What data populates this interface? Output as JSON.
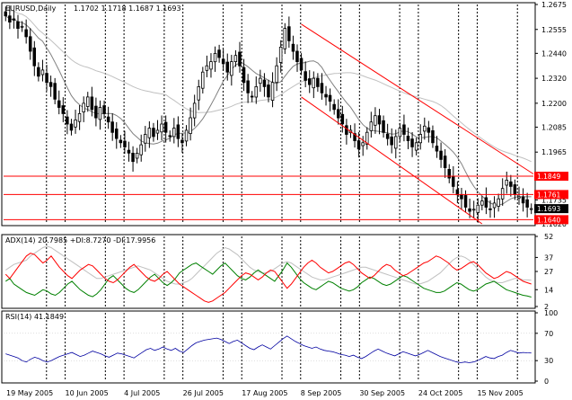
{
  "chart_data": [
    {
      "type": "candlestick",
      "title": "EURUSD,Daily",
      "ohlc_header": "1.1702 1.1718 1.1687 1.1693",
      "ylim": [
        1.162,
        1.2675
      ],
      "y_ticks": [
        1.2675,
        1.2555,
        1.244,
        1.232,
        1.22,
        1.2085,
        1.1965,
        1.185,
        1.1735,
        1.162
      ],
      "x_tick_labels": [
        "19 May 2005",
        "10 Jun 2005",
        "4 Jul 2005",
        "26 Jul 2005",
        "17 Aug 2005",
        "8 Sep 2005",
        "30 Sep 2005",
        "24 Oct 2005",
        "15 Nov 2005"
      ],
      "horizontal_levels": [
        1.1849,
        1.1761,
        1.164
      ],
      "level_labels": [
        "1.1849",
        "1.1761",
        "1.1640"
      ],
      "current_price": 1.1693,
      "current_price_label": "1.1693",
      "close_series": [
        1.262,
        1.259,
        1.26,
        1.256,
        1.257,
        1.252,
        1.245,
        1.238,
        1.233,
        1.236,
        1.23,
        1.228,
        1.222,
        1.218,
        1.215,
        1.21,
        1.207,
        1.212,
        1.215,
        1.22,
        1.223,
        1.217,
        1.213,
        1.218,
        1.215,
        1.211,
        1.206,
        1.203,
        1.201,
        1.199,
        1.196,
        1.192,
        1.196,
        1.2,
        1.205,
        1.208,
        1.204,
        1.207,
        1.21,
        1.206,
        1.204,
        1.208,
        1.203,
        1.201,
        1.207,
        1.213,
        1.22,
        1.228,
        1.235,
        1.238,
        1.24,
        1.244,
        1.242,
        1.239,
        1.235,
        1.24,
        1.243,
        1.238,
        1.23,
        1.225,
        1.223,
        1.228,
        1.232,
        1.228,
        1.223,
        1.23,
        1.238,
        1.247,
        1.256,
        1.25,
        1.245,
        1.24,
        1.236,
        1.231,
        1.229,
        1.232,
        1.228,
        1.225,
        1.223,
        1.221,
        1.217,
        1.213,
        1.21,
        1.205,
        1.207,
        1.202,
        1.198,
        1.201,
        1.206,
        1.211,
        1.214,
        1.21,
        1.206,
        1.203,
        1.2,
        1.204,
        1.208,
        1.205,
        1.202,
        1.199,
        1.201,
        1.205,
        1.209,
        1.206,
        1.201,
        1.197,
        1.193,
        1.189,
        1.184,
        1.18,
        1.176,
        1.174,
        1.17,
        1.168,
        1.169,
        1.171,
        1.173,
        1.17,
        1.169,
        1.172,
        1.174,
        1.179,
        1.183,
        1.18,
        1.176,
        1.175,
        1.172,
        1.17,
        1.1693
      ]
    },
    {
      "type": "line",
      "indicator_label": "ADX(14) 20.7985 +DI:8.7270 -DI:17.9956",
      "ylim": [
        2,
        52
      ],
      "y_ticks": [
        52,
        37,
        27,
        14,
        2
      ],
      "series": [
        {
          "name": "ADX(14)",
          "color": "#c0c0c0",
          "values": [
            28,
            30,
            32,
            33,
            34,
            35,
            38,
            40,
            42,
            44,
            45,
            44,
            42,
            40,
            38,
            36,
            34,
            32,
            30,
            28,
            26,
            24,
            22,
            22,
            23,
            24,
            25,
            26,
            27,
            28,
            29,
            30,
            31,
            30,
            29,
            28,
            26,
            24,
            22,
            20,
            19,
            18,
            18,
            19,
            20,
            22,
            25,
            28,
            31,
            34,
            37,
            40,
            42,
            44,
            43,
            41,
            39,
            36,
            33,
            30,
            28,
            27,
            26,
            26,
            27,
            29,
            31,
            33,
            34,
            33,
            31,
            29,
            27,
            25,
            23,
            22,
            21,
            21,
            22,
            23,
            24,
            25,
            26,
            27,
            28,
            29,
            30,
            30,
            29,
            28,
            27,
            26,
            25,
            24,
            23,
            22,
            21,
            20,
            19,
            18,
            18,
            19,
            20,
            22,
            24,
            26,
            29,
            32,
            35,
            37,
            38,
            37,
            35,
            32,
            29,
            26,
            23,
            21,
            20,
            19,
            19,
            20,
            21,
            22,
            22,
            21,
            21,
            20.8
          ]
        },
        {
          "name": "+DI",
          "color": "#008000",
          "values": [
            20,
            22,
            18,
            16,
            14,
            12,
            11,
            10,
            12,
            14,
            13,
            11,
            10,
            12,
            15,
            18,
            20,
            17,
            14,
            12,
            10,
            9,
            11,
            14,
            18,
            22,
            24,
            21,
            18,
            15,
            13,
            12,
            14,
            17,
            20,
            23,
            25,
            22,
            19,
            17,
            19,
            22,
            26,
            28,
            30,
            32,
            33,
            31,
            29,
            27,
            25,
            28,
            31,
            33,
            30,
            27,
            24,
            22,
            21,
            23,
            26,
            28,
            26,
            24,
            22,
            20,
            24,
            28,
            33,
            30,
            26,
            22,
            19,
            17,
            15,
            14,
            16,
            18,
            20,
            19,
            17,
            15,
            14,
            13,
            14,
            16,
            19,
            21,
            23,
            22,
            20,
            18,
            17,
            18,
            20,
            22,
            24,
            23,
            21,
            19,
            17,
            15,
            14,
            13,
            12,
            12,
            13,
            15,
            17,
            19,
            18,
            16,
            14,
            13,
            14,
            16,
            18,
            19,
            20,
            18,
            16,
            14,
            13,
            12,
            11,
            10,
            9.5,
            8.7
          ]
        },
        {
          "name": "-DI",
          "color": "#ff0000",
          "values": [
            25,
            22,
            26,
            30,
            34,
            38,
            40,
            39,
            36,
            33,
            35,
            38,
            34,
            30,
            27,
            24,
            22,
            25,
            28,
            30,
            32,
            31,
            28,
            25,
            22,
            20,
            19,
            21,
            24,
            27,
            30,
            32,
            29,
            26,
            23,
            21,
            20,
            22,
            25,
            27,
            24,
            21,
            18,
            16,
            14,
            12,
            10,
            8,
            6,
            5,
            6,
            8,
            10,
            12,
            15,
            18,
            21,
            24,
            26,
            25,
            23,
            21,
            23,
            26,
            28,
            27,
            23,
            19,
            15,
            18,
            22,
            26,
            30,
            33,
            35,
            33,
            30,
            28,
            26,
            27,
            29,
            31,
            33,
            34,
            32,
            29,
            26,
            24,
            22,
            24,
            27,
            30,
            32,
            31,
            28,
            26,
            24,
            25,
            27,
            29,
            31,
            33,
            34,
            36,
            38,
            37,
            35,
            33,
            30,
            28,
            29,
            31,
            33,
            34,
            32,
            29,
            26,
            24,
            22,
            23,
            25,
            27,
            26,
            24,
            22,
            20,
            19,
            18
          ]
        }
      ]
    },
    {
      "type": "line",
      "indicator_label": "RSI(14) 41.1849",
      "ylim": [
        0,
        100
      ],
      "y_ticks": [
        100,
        70,
        30,
        0
      ],
      "series": [
        {
          "name": "RSI(14)",
          "color": "#0000a0",
          "values": [
            40,
            38,
            36,
            34,
            30,
            28,
            32,
            35,
            33,
            30,
            28,
            30,
            33,
            36,
            38,
            40,
            42,
            39,
            36,
            38,
            41,
            44,
            42,
            40,
            37,
            35,
            38,
            41,
            40,
            38,
            36,
            34,
            38,
            42,
            46,
            48,
            45,
            47,
            50,
            47,
            45,
            48,
            44,
            42,
            47,
            52,
            56,
            58,
            60,
            61,
            62,
            63,
            61,
            58,
            55,
            58,
            60,
            56,
            52,
            48,
            46,
            50,
            53,
            50,
            47,
            52,
            57,
            62,
            66,
            62,
            58,
            55,
            52,
            50,
            48,
            50,
            47,
            45,
            44,
            43,
            41,
            39,
            38,
            36,
            38,
            35,
            33,
            36,
            40,
            44,
            47,
            44,
            41,
            39,
            37,
            40,
            43,
            41,
            39,
            37,
            39,
            42,
            45,
            42,
            39,
            36,
            34,
            32,
            30,
            28,
            27,
            28,
            27,
            28,
            30,
            33,
            36,
            34,
            33,
            36,
            38,
            42,
            45,
            43,
            41,
            42,
            41.5,
            41.2
          ]
        }
      ]
    }
  ],
  "colors": {
    "candle_up": "#ffffff",
    "candle_down": "#000000",
    "channel": "#ff0000",
    "level_line": "#ff0000",
    "ma_fast": "#808080",
    "ma_slow": "#c0c0c0",
    "price_badge": "#000000",
    "level_badge": "#ff0000"
  }
}
